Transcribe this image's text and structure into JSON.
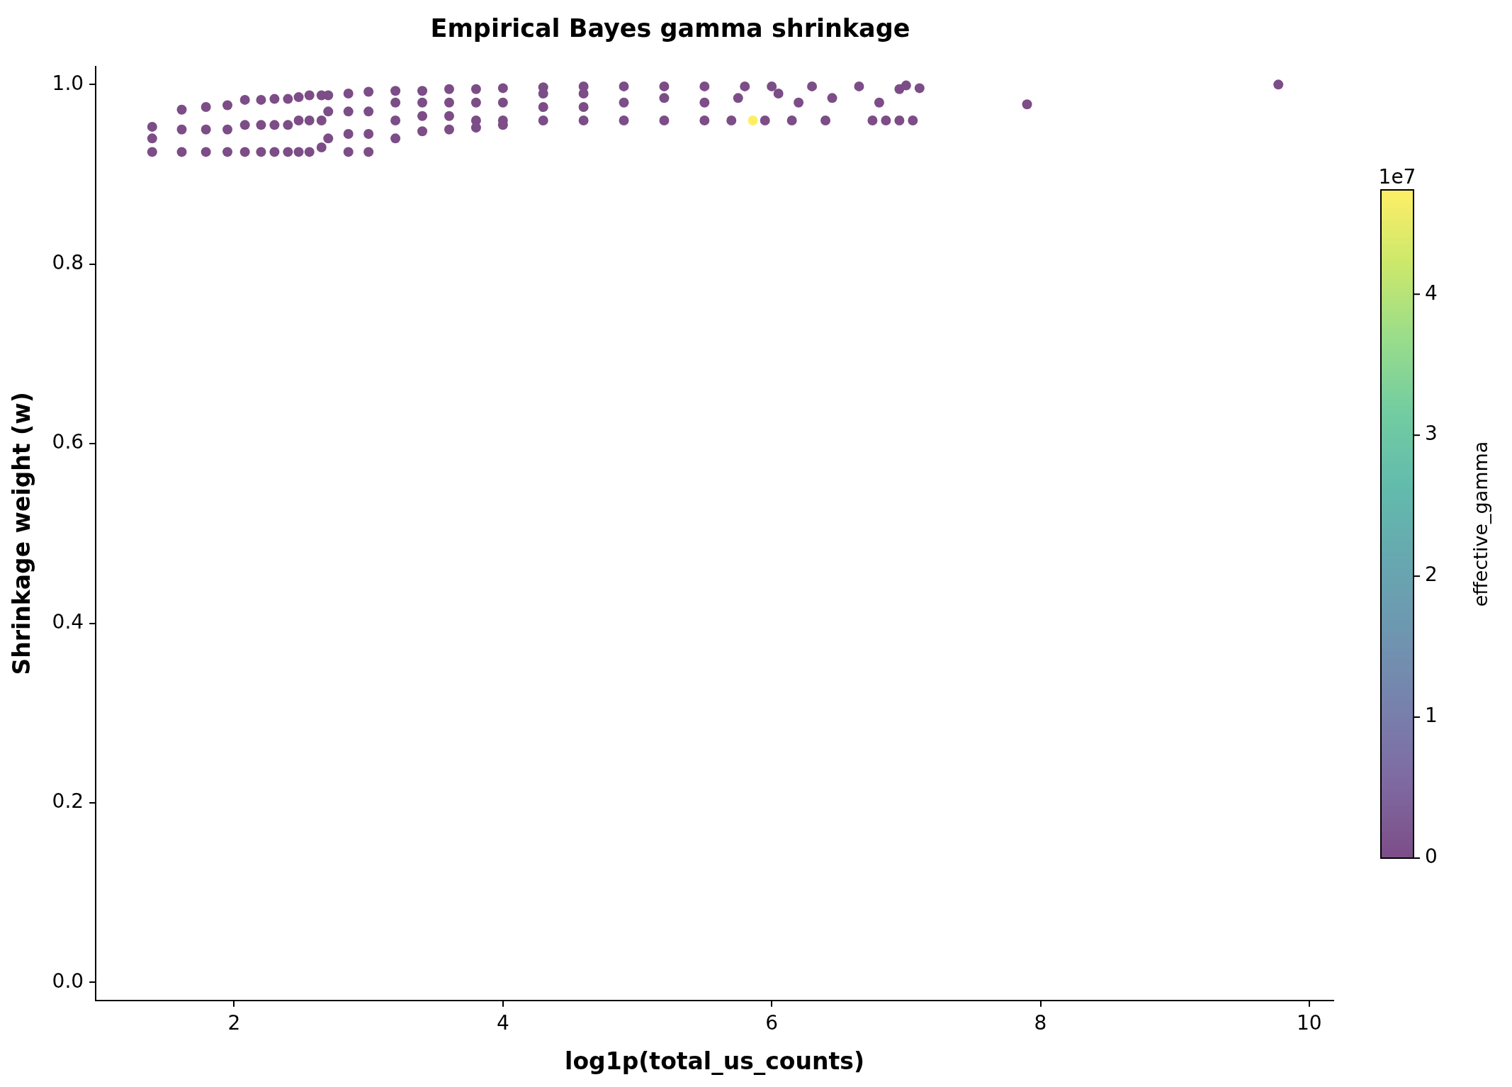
{
  "chart_data": {
    "type": "scatter",
    "title": "Empirical Bayes gamma shrinkage",
    "xlabel": "log1p(total_us_counts)",
    "ylabel": "Shrinkage weight (w)",
    "clabel": "effective_gamma",
    "annotations": [
      "1e7"
    ],
    "marker": "circle",
    "xlim": [
      0.97,
      10.18
    ],
    "ylim": [
      -0.02,
      1.02
    ],
    "xticks": [
      2,
      4,
      6,
      8,
      10
    ],
    "yticks": [
      {
        "value": 0,
        "label": "0.0"
      },
      0.2,
      0.4,
      0.6,
      0.8,
      {
        "value": 1,
        "label": "1.0"
      }
    ],
    "clim": [
      0,
      4.74
    ],
    "cticks": [
      0,
      1,
      2,
      3,
      4
    ],
    "x": [
      1.39,
      1.39,
      1.39,
      1.61,
      1.61,
      1.61,
      1.79,
      1.79,
      1.79,
      1.95,
      1.95,
      1.95,
      2.08,
      2.08,
      2.08,
      2.2,
      2.2,
      2.2,
      2.3,
      2.3,
      2.3,
      2.4,
      2.4,
      2.4,
      2.48,
      2.48,
      2.48,
      2.56,
      2.56,
      2.56,
      2.65,
      2.65,
      2.65,
      2.7,
      2.7,
      2.7,
      2.85,
      2.85,
      2.85,
      2.85,
      3.0,
      3.0,
      3.0,
      3.0,
      3.2,
      3.2,
      3.2,
      3.2,
      3.4,
      3.4,
      3.4,
      3.4,
      3.6,
      3.6,
      3.6,
      3.6,
      3.8,
      3.8,
      3.8,
      3.8,
      4.0,
      4.0,
      4.0,
      4.0,
      4.3,
      4.3,
      4.3,
      4.3,
      4.6,
      4.6,
      4.6,
      4.6,
      4.9,
      4.9,
      4.9,
      5.2,
      5.2,
      5.2,
      5.5,
      5.5,
      5.5,
      5.7,
      5.75,
      5.8,
      5.95,
      6.0,
      6.05,
      6.15,
      6.2,
      6.3,
      6.4,
      6.45,
      6.65,
      6.75,
      6.8,
      6.85,
      6.95,
      6.95,
      7.0,
      7.05,
      7.1,
      7.9,
      9.77,
      5.86
    ],
    "values": [
      0.925,
      0.94,
      0.953,
      0.925,
      0.95,
      0.972,
      0.925,
      0.95,
      0.975,
      0.925,
      0.95,
      0.977,
      0.925,
      0.955,
      0.983,
      0.925,
      0.955,
      0.983,
      0.925,
      0.955,
      0.984,
      0.925,
      0.955,
      0.984,
      0.925,
      0.96,
      0.986,
      0.925,
      0.96,
      0.988,
      0.93,
      0.96,
      0.988,
      0.94,
      0.97,
      0.988,
      0.925,
      0.945,
      0.97,
      0.99,
      0.925,
      0.945,
      0.97,
      0.992,
      0.94,
      0.96,
      0.98,
      0.993,
      0.948,
      0.965,
      0.98,
      0.993,
      0.95,
      0.965,
      0.98,
      0.995,
      0.952,
      0.96,
      0.98,
      0.995,
      0.955,
      0.96,
      0.98,
      0.996,
      0.96,
      0.975,
      0.99,
      0.997,
      0.96,
      0.975,
      0.99,
      0.998,
      0.96,
      0.98,
      0.998,
      0.96,
      0.985,
      0.998,
      0.96,
      0.98,
      0.998,
      0.96,
      0.985,
      0.998,
      0.96,
      0.998,
      0.99,
      0.96,
      0.98,
      0.998,
      0.96,
      0.985,
      0.998,
      0.96,
      0.98,
      0.96,
      0.96,
      0.995,
      0.999,
      0.96,
      0.996,
      0.978,
      1.0,
      0.96
    ],
    "cvalues": [
      0,
      0,
      0,
      0,
      0,
      0,
      0,
      0,
      0,
      0,
      0,
      0,
      0,
      0,
      0,
      0,
      0,
      0,
      0,
      0,
      0,
      0,
      0,
      0,
      0,
      0,
      0,
      0,
      0,
      0,
      0,
      0,
      0,
      0,
      0,
      0,
      0,
      0,
      0,
      0,
      0,
      0,
      0,
      0,
      0,
      0,
      0,
      0,
      0,
      0,
      0,
      0,
      0,
      0,
      0,
      0,
      0,
      0,
      0,
      0,
      0,
      0,
      0,
      0,
      0,
      0,
      0,
      0,
      0,
      0,
      0,
      0,
      0,
      0,
      0,
      0,
      0,
      0,
      0,
      0,
      0,
      0,
      0,
      0,
      0,
      0,
      0,
      0,
      0,
      0,
      0,
      0,
      0,
      0,
      0,
      0,
      0,
      0,
      0,
      0,
      0,
      0,
      0,
      4.74
    ]
  }
}
